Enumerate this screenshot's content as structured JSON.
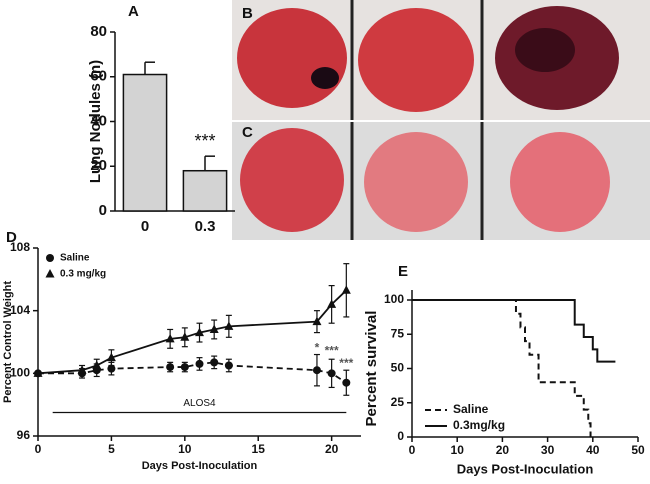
{
  "chart_data": [
    {
      "type": "bar",
      "panel_label": "A",
      "y_label": "Lung Nodules (n)",
      "categories": [
        "0",
        "0.3"
      ],
      "values": [
        61,
        18
      ],
      "errors": [
        5.5,
        6.5
      ],
      "color": "#d3d3d3",
      "annotation": "***",
      "ylim": [
        0,
        80
      ],
      "yticks": [
        0,
        20,
        40,
        60,
        80
      ]
    },
    {
      "type": "line",
      "panel_label": "D",
      "x_label": "Days Post-Inoculation",
      "y_label": "Percent Control Weight",
      "x": [
        0,
        3,
        4,
        5,
        9,
        10,
        11,
        12,
        13,
        19,
        20,
        21
      ],
      "series": [
        {
          "name": "Saline",
          "color": "#111111",
          "marker": "circle",
          "dashed": true,
          "values": [
            100,
            100.0,
            100.2,
            100.3,
            100.4,
            100.4,
            100.6,
            100.7,
            100.5,
            100.2,
            100.0,
            99.4
          ],
          "errors": [
            0.1,
            0.3,
            0.4,
            0.4,
            0.3,
            0.3,
            0.4,
            0.4,
            0.4,
            1.0,
            0.9,
            0.8
          ]
        },
        {
          "name": "0.3 mg/kg",
          "color": "#111111",
          "marker": "triangle",
          "dashed": false,
          "values": [
            100,
            100.2,
            100.5,
            101.0,
            102.2,
            102.3,
            102.6,
            102.8,
            103.0,
            103.3,
            104.4,
            105.3
          ],
          "errors": [
            0.1,
            0.3,
            0.4,
            0.5,
            0.6,
            0.6,
            0.6,
            0.6,
            0.7,
            0.7,
            1.2,
            1.7
          ]
        }
      ],
      "annotations": [
        {
          "text": "*",
          "x": 19,
          "y": 101.6
        },
        {
          "text": "***",
          "x": 20,
          "y": 101.4
        },
        {
          "text": "***",
          "x": 21,
          "y": 100.6
        }
      ],
      "treatment": {
        "label": "ALOS4",
        "start": 1,
        "end": 21,
        "y": 97.5
      },
      "xlim": [
        0,
        22
      ],
      "xticks": [
        0,
        5,
        10,
        15,
        20
      ],
      "ylim": [
        96,
        108
      ],
      "yticks": [
        96,
        100,
        104,
        108
      ]
    },
    {
      "type": "step",
      "panel_label": "E",
      "x_label": "Days Post-Inoculation",
      "y_label": "Percent survival",
      "series": [
        {
          "name": "Saline",
          "color": "#111111",
          "dashed": true,
          "x": [
            0,
            23,
            24,
            25,
            26,
            28,
            36,
            38,
            39,
            39.5
          ],
          "values": [
            100,
            90,
            80,
            70,
            60,
            40,
            30,
            20,
            10,
            0
          ]
        },
        {
          "name": "0.3mg/kg",
          "color": "#111111",
          "dashed": false,
          "x": [
            0,
            36,
            38,
            40,
            41,
            45
          ],
          "values": [
            100,
            82,
            73,
            64,
            55,
            55
          ]
        }
      ],
      "xlim": [
        0,
        50
      ],
      "xticks": [
        0,
        10,
        20,
        30,
        40,
        50
      ],
      "ylim": [
        0,
        100
      ],
      "yticks": [
        0,
        25,
        50,
        75,
        100
      ]
    }
  ],
  "photos": {
    "labels": [
      "B",
      "C"
    ]
  }
}
